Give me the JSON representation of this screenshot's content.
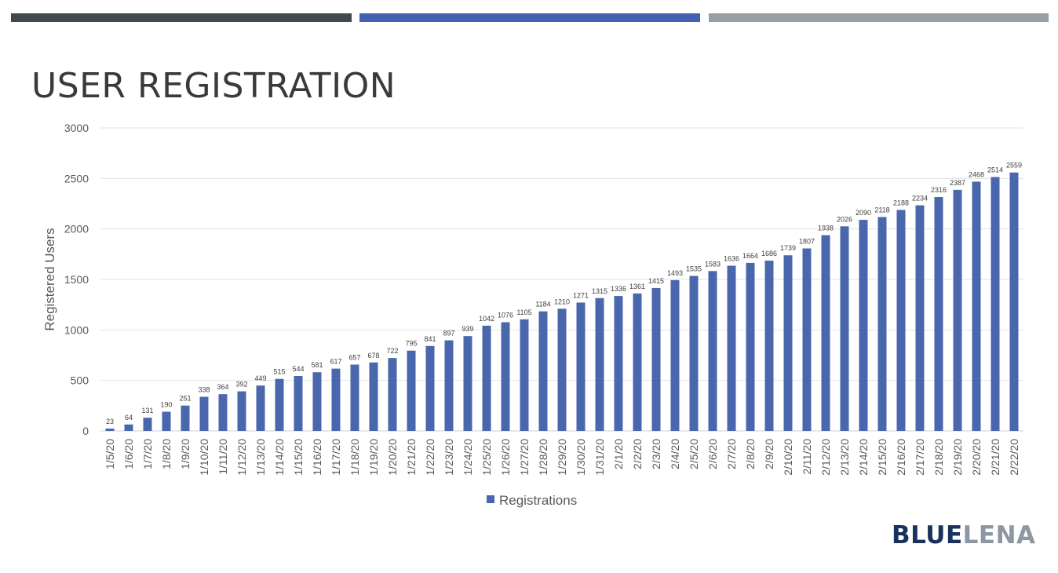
{
  "slide": {
    "title": "USER REGISTRATION",
    "logo_part1": "BLUE",
    "logo_part2": "LENA"
  },
  "colors": {
    "bar_dark": "#3f4a4f",
    "bar_blue": "#4262b1",
    "bar_gray": "#969ea6",
    "series": "#4a66ac",
    "logo_blue": "#17325c",
    "logo_gray": "#8d97a2"
  },
  "chart_data": {
    "type": "bar",
    "title": "",
    "xlabel": "",
    "ylabel": "Registered Users",
    "ylim": [
      0,
      3000
    ],
    "yticks": [
      0,
      500,
      1000,
      1500,
      2000,
      2500,
      3000
    ],
    "grid": true,
    "legend_position": "bottom",
    "categories": [
      "1/5/20",
      "1/6/20",
      "1/7/20",
      "1/8/20",
      "1/9/20",
      "1/10/20",
      "1/11/20",
      "1/12/20",
      "1/13/20",
      "1/14/20",
      "1/15/20",
      "1/16/20",
      "1/17/20",
      "1/18/20",
      "1/19/20",
      "1/20/20",
      "1/21/20",
      "1/22/20",
      "1/23/20",
      "1/24/20",
      "1/25/20",
      "1/26/20",
      "1/27/20",
      "1/28/20",
      "1/29/20",
      "1/30/20",
      "1/31/20",
      "2/1/20",
      "2/2/20",
      "2/3/20",
      "2/4/20",
      "2/5/20",
      "2/6/20",
      "2/7/20",
      "2/8/20",
      "2/9/20",
      "2/10/20",
      "2/11/20",
      "2/12/20",
      "2/13/20",
      "2/14/20",
      "2/15/20",
      "2/16/20",
      "2/17/20",
      "2/18/20",
      "2/19/20",
      "2/20/20",
      "2/21/20",
      "2/22/20"
    ],
    "series": [
      {
        "name": "Registrations",
        "values": [
          23,
          64,
          131,
          190,
          251,
          338,
          364,
          392,
          449,
          515,
          544,
          581,
          617,
          657,
          678,
          722,
          795,
          841,
          897,
          939,
          1042,
          1076,
          1105,
          1184,
          1210,
          1271,
          1315,
          1336,
          1361,
          1415,
          1493,
          1535,
          1583,
          1636,
          1664,
          1686,
          1739,
          1807,
          1938,
          2026,
          2090,
          2118,
          2188,
          2234,
          2316,
          2387,
          2468,
          2514,
          2559
        ]
      }
    ]
  }
}
